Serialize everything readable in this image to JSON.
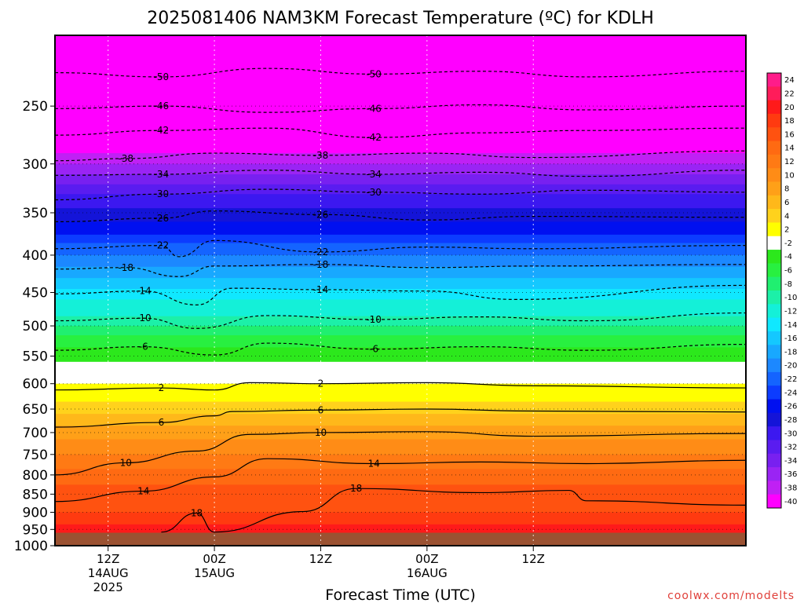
{
  "chart_data": {
    "type": "heatmap",
    "title": "2025081406 NAM3KM Forecast Temperature (ºC) for KDLH",
    "xlabel": "Forecast Time (UTC)",
    "credit": "coolwx.com/modelts",
    "y_scale": "log",
    "y_reversed": true,
    "ylim": [
      1000,
      200
    ],
    "y_ticks": [
      250,
      300,
      350,
      400,
      450,
      500,
      550,
      600,
      650,
      700,
      750,
      800,
      850,
      900,
      950,
      1000
    ],
    "x_range_hours": [
      6,
      84
    ],
    "x_ticks": [
      {
        "hour": 12,
        "line1": "12Z",
        "line2": "14AUG",
        "line3": "2025"
      },
      {
        "hour": 24,
        "line1": "00Z",
        "line2": "15AUG",
        "line3": ""
      },
      {
        "hour": 36,
        "line1": "12Z",
        "line2": "",
        "line3": ""
      },
      {
        "hour": 48,
        "line1": "00Z",
        "line2": "16AUG",
        "line3": ""
      },
      {
        "hour": 60,
        "line1": "12Z",
        "line2": "",
        "line3": ""
      }
    ],
    "surface_pressure": 960,
    "colorbar": {
      "levels": [
        "24",
        "22",
        "20",
        "18",
        "16",
        "14",
        "12",
        "10",
        "8",
        "6",
        "4",
        "2",
        "-2",
        "-4",
        "-6",
        "-8",
        "-10",
        "-12",
        "-14",
        "-16",
        "-18",
        "-20",
        "-22",
        "-24",
        "-26",
        "-28",
        "-30",
        "-32",
        "-34",
        "-36",
        "-38",
        "-40"
      ],
      "colors": [
        "#ff1c8a",
        "#ff1c5a",
        "#ff1a1a",
        "#ff3a10",
        "#ff5210",
        "#ff6a12",
        "#ff7a14",
        "#ff8c16",
        "#ffa018",
        "#ffb81a",
        "#ffd21c",
        "#ffff00",
        "#ffffff",
        "#2ce81c",
        "#28f040",
        "#20ef70",
        "#1cf0a8",
        "#14f0d8",
        "#10e8ff",
        "#14c8ff",
        "#18a8ff",
        "#1c88ff",
        "#1464ff",
        "#0c3cff",
        "#0010f0",
        "#1414d8",
        "#3c18f0",
        "#5a1cf0",
        "#7820f0",
        "#9a24f4",
        "#c020f4",
        "#ff00ff"
      ]
    },
    "profile": [
      {
        "p": 200,
        "t": -55
      },
      {
        "p": 230,
        "t": -52
      },
      {
        "p": 250,
        "t": -46
      },
      {
        "p": 275,
        "t": -42
      },
      {
        "p": 300,
        "t": -36
      },
      {
        "p": 325,
        "t": -31
      },
      {
        "p": 350,
        "t": -27
      },
      {
        "p": 375,
        "t": -24
      },
      {
        "p": 400,
        "t": -20
      },
      {
        "p": 425,
        "t": -17
      },
      {
        "p": 450,
        "t": -13
      },
      {
        "p": 475,
        "t": -11
      },
      {
        "p": 500,
        "t": -8
      },
      {
        "p": 525,
        "t": -5
      },
      {
        "p": 550,
        "t": -3
      },
      {
        "p": 575,
        "t": 0
      },
      {
        "p": 600,
        "t": 2
      },
      {
        "p": 625,
        "t": 3
      },
      {
        "p": 650,
        "t": 5
      },
      {
        "p": 700,
        "t": 9
      },
      {
        "p": 750,
        "t": 12
      },
      {
        "p": 800,
        "t": 15
      },
      {
        "p": 850,
        "t": 17
      },
      {
        "p": 900,
        "t": 18
      },
      {
        "p": 950,
        "t": 21
      },
      {
        "p": 1000,
        "t": 23
      }
    ],
    "contours": [
      {
        "label": "-50",
        "dashed": true,
        "points": [
          [
            6,
            225
          ],
          [
            18,
            228
          ],
          [
            30,
            222
          ],
          [
            42,
            226
          ],
          [
            54,
            224
          ],
          [
            66,
            228
          ],
          [
            84,
            224
          ]
        ]
      },
      {
        "label": "-46",
        "dashed": true,
        "points": [
          [
            6,
            252
          ],
          [
            18,
            250
          ],
          [
            30,
            255
          ],
          [
            42,
            252
          ],
          [
            54,
            249
          ],
          [
            66,
            253
          ],
          [
            84,
            250
          ]
        ]
      },
      {
        "label": "-42",
        "dashed": true,
        "points": [
          [
            6,
            274
          ],
          [
            18,
            270
          ],
          [
            30,
            268
          ],
          [
            42,
            276
          ],
          [
            54,
            272
          ],
          [
            66,
            270
          ],
          [
            84,
            268
          ]
        ]
      },
      {
        "label": "-38",
        "dashed": true,
        "points": [
          [
            6,
            297
          ],
          [
            14,
            295
          ],
          [
            24,
            290
          ],
          [
            36,
            292
          ],
          [
            48,
            290
          ],
          [
            60,
            294
          ],
          [
            84,
            288
          ]
        ]
      },
      {
        "label": "-34",
        "dashed": true,
        "points": [
          [
            6,
            311
          ],
          [
            18,
            310
          ],
          [
            30,
            306
          ],
          [
            42,
            310
          ],
          [
            54,
            308
          ],
          [
            66,
            312
          ],
          [
            84,
            306
          ]
        ]
      },
      {
        "label": "-30",
        "dashed": true,
        "points": [
          [
            6,
            336
          ],
          [
            18,
            330
          ],
          [
            30,
            325
          ],
          [
            42,
            328
          ],
          [
            54,
            330
          ],
          [
            66,
            326
          ],
          [
            84,
            328
          ]
        ]
      },
      {
        "label": "-26",
        "dashed": true,
        "points": [
          [
            6,
            360
          ],
          [
            18,
            356
          ],
          [
            24,
            348
          ],
          [
            36,
            352
          ],
          [
            48,
            358
          ],
          [
            60,
            354
          ],
          [
            84,
            355
          ]
        ]
      },
      {
        "label": "-22",
        "dashed": true,
        "points": [
          [
            6,
            392
          ],
          [
            18,
            388
          ],
          [
            20,
            402
          ],
          [
            24,
            382
          ],
          [
            36,
            396
          ],
          [
            48,
            390
          ],
          [
            60,
            392
          ],
          [
            84,
            388
          ]
        ]
      },
      {
        "label": "-18",
        "dashed": true,
        "points": [
          [
            6,
            418
          ],
          [
            14,
            416
          ],
          [
            20,
            428
          ],
          [
            24,
            414
          ],
          [
            36,
            412
          ],
          [
            48,
            416
          ],
          [
            60,
            414
          ],
          [
            84,
            412
          ]
        ]
      },
      {
        "label": "-14",
        "dashed": true,
        "points": [
          [
            6,
            452
          ],
          [
            16,
            448
          ],
          [
            22,
            468
          ],
          [
            26,
            444
          ],
          [
            36,
            446
          ],
          [
            48,
            448
          ],
          [
            58,
            460
          ],
          [
            84,
            440
          ]
        ]
      },
      {
        "label": "-10",
        "dashed": true,
        "points": [
          [
            6,
            492
          ],
          [
            16,
            488
          ],
          [
            22,
            504
          ],
          [
            30,
            484
          ],
          [
            42,
            490
          ],
          [
            54,
            486
          ],
          [
            66,
            492
          ],
          [
            84,
            480
          ]
        ]
      },
      {
        "label": "-6",
        "dashed": true,
        "points": [
          [
            6,
            540
          ],
          [
            16,
            534
          ],
          [
            24,
            548
          ],
          [
            30,
            528
          ],
          [
            42,
            538
          ],
          [
            54,
            534
          ],
          [
            66,
            540
          ],
          [
            84,
            530
          ]
        ]
      },
      {
        "label": "2",
        "dashed": false,
        "points": [
          [
            6,
            612
          ],
          [
            18,
            608
          ],
          [
            24,
            612
          ],
          [
            28,
            598
          ],
          [
            36,
            600
          ],
          [
            48,
            598
          ],
          [
            60,
            604
          ],
          [
            84,
            608
          ]
        ]
      },
      {
        "label": "6",
        "dashed": false,
        "points": [
          [
            6,
            688
          ],
          [
            18,
            678
          ],
          [
            24,
            664
          ],
          [
            26,
            655
          ],
          [
            36,
            652
          ],
          [
            48,
            650
          ],
          [
            60,
            654
          ],
          [
            84,
            656
          ]
        ]
      },
      {
        "label": "10",
        "dashed": false,
        "points": [
          [
            6,
            800
          ],
          [
            14,
            770
          ],
          [
            22,
            742
          ],
          [
            28,
            704
          ],
          [
            36,
            700
          ],
          [
            48,
            698
          ],
          [
            60,
            708
          ],
          [
            84,
            702
          ]
        ]
      },
      {
        "label": "14",
        "dashed": false,
        "points": [
          [
            6,
            870
          ],
          [
            16,
            842
          ],
          [
            24,
            805
          ],
          [
            30,
            760
          ],
          [
            42,
            772
          ],
          [
            54,
            768
          ],
          [
            66,
            772
          ],
          [
            84,
            764
          ]
        ]
      },
      {
        "label": "18",
        "dashed": false,
        "points": [
          [
            18,
            958
          ],
          [
            22,
            902
          ],
          [
            24,
            958
          ],
          [
            34,
            898
          ],
          [
            40,
            835
          ],
          [
            54,
            846
          ],
          [
            64,
            840
          ],
          [
            66,
            868
          ],
          [
            84,
            880
          ]
        ]
      }
    ]
  }
}
